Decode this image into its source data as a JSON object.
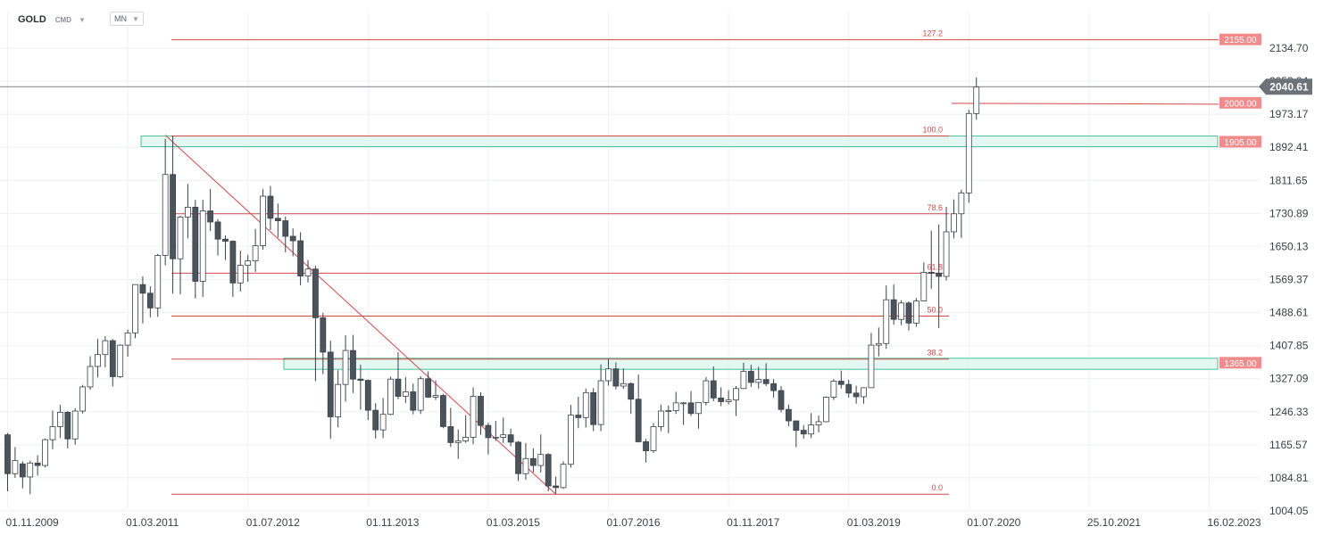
{
  "header": {
    "symbol": "GOLD",
    "exchange": "CMD",
    "interval": "MN"
  },
  "colors": {
    "bull_body": "#ffffff",
    "bear_body": "#4b545c",
    "wick": "#3a4148",
    "fib_line": "#d04a4a",
    "zone_fill": "#dff6ef",
    "zone_stroke": "#49c19b",
    "price_tag": "#f08c8c",
    "current_tag": "#6b7379",
    "grid": "#eef0f2"
  },
  "chart_data": {
    "type": "candlestick",
    "symbol": "GOLD",
    "interval": "MN",
    "y_ticks": [
      2134.7,
      2053.94,
      1973.17,
      1892.41,
      1811.65,
      1730.89,
      1650.13,
      1569.37,
      1488.61,
      1407.85,
      1327.09,
      1246.33,
      1165.57,
      1084.81,
      1004.05
    ],
    "x_tick_labels": [
      "01.11.2009",
      "01.03.2011",
      "01.07.2012",
      "01.11.2013",
      "01.03.2015",
      "01.07.2016",
      "01.11.2017",
      "01.03.2019",
      "01.07.2020",
      "25.10.2021",
      "16.02.2023"
    ],
    "current_price": 2040.61,
    "price_levels": [
      {
        "label": "2155.00",
        "value": 2155.0
      },
      {
        "label": "2000.00",
        "value": 2000.0
      },
      {
        "label": "1905.00",
        "value": 1905.0
      },
      {
        "label": "1365.00",
        "value": 1365.0
      }
    ],
    "fib_levels": [
      {
        "label": "127.2",
        "value": 2155.0
      },
      {
        "label": "100.0",
        "value": 1920.0
      },
      {
        "label": "78.6",
        "value": 1730.0
      },
      {
        "label": "61.8",
        "value": 1585.0
      },
      {
        "label": "50.0",
        "value": 1480.0
      },
      {
        "label": "38.2",
        "value": 1375.0
      },
      {
        "label": "0.0",
        "value": 1045.0
      }
    ],
    "zones": [
      {
        "label": "1905.00",
        "low": 1894.0,
        "high": 1920.0
      },
      {
        "label": "1365.00",
        "low": 1350.0,
        "high": 1377.0
      }
    ],
    "trendline": {
      "from": {
        "date": "2011-08-01",
        "price": 1922.0
      },
      "to": {
        "date": "2015-12-01",
        "price": 1045.0
      }
    },
    "candles": [
      {
        "date": "2009-11-01",
        "o": 1190,
        "h": 1194,
        "l": 1052,
        "c": 1095
      },
      {
        "date": "2009-12-01",
        "o": 1095,
        "h": 1160,
        "l": 1085,
        "c": 1127
      },
      {
        "date": "2010-01-01",
        "o": 1119,
        "h": 1125,
        "l": 1059,
        "c": 1087
      },
      {
        "date": "2010-02-01",
        "o": 1087,
        "h": 1127,
        "l": 1045,
        "c": 1121
      },
      {
        "date": "2010-03-01",
        "o": 1121,
        "h": 1140,
        "l": 1090,
        "c": 1115
      },
      {
        "date": "2010-04-01",
        "o": 1115,
        "h": 1181,
        "l": 1110,
        "c": 1178
      },
      {
        "date": "2010-05-01",
        "o": 1178,
        "h": 1249,
        "l": 1155,
        "c": 1210
      },
      {
        "date": "2010-06-01",
        "o": 1210,
        "h": 1263,
        "l": 1182,
        "c": 1245
      },
      {
        "date": "2010-07-01",
        "o": 1245,
        "h": 1248,
        "l": 1157,
        "c": 1180
      },
      {
        "date": "2010-08-01",
        "o": 1180,
        "h": 1255,
        "l": 1166,
        "c": 1248
      },
      {
        "date": "2010-09-01",
        "o": 1248,
        "h": 1312,
        "l": 1242,
        "c": 1307
      },
      {
        "date": "2010-10-01",
        "o": 1307,
        "h": 1382,
        "l": 1300,
        "c": 1357
      },
      {
        "date": "2010-11-01",
        "o": 1357,
        "h": 1424,
        "l": 1330,
        "c": 1386
      },
      {
        "date": "2010-12-01",
        "o": 1386,
        "h": 1431,
        "l": 1355,
        "c": 1420
      },
      {
        "date": "2011-01-01",
        "o": 1420,
        "h": 1424,
        "l": 1308,
        "c": 1332
      },
      {
        "date": "2011-02-01",
        "o": 1332,
        "h": 1411,
        "l": 1329,
        "c": 1409
      },
      {
        "date": "2011-03-01",
        "o": 1409,
        "h": 1447,
        "l": 1381,
        "c": 1439
      },
      {
        "date": "2011-04-01",
        "o": 1439,
        "h": 1557,
        "l": 1426,
        "c": 1557
      },
      {
        "date": "2011-05-01",
        "o": 1557,
        "h": 1577,
        "l": 1462,
        "c": 1536
      },
      {
        "date": "2011-06-01",
        "o": 1536,
        "h": 1553,
        "l": 1477,
        "c": 1500
      },
      {
        "date": "2011-07-01",
        "o": 1500,
        "h": 1632,
        "l": 1478,
        "c": 1628
      },
      {
        "date": "2011-08-01",
        "o": 1628,
        "h": 1913,
        "l": 1604,
        "c": 1826
      },
      {
        "date": "2011-09-01",
        "o": 1826,
        "h": 1921,
        "l": 1535,
        "c": 1620
      },
      {
        "date": "2011-10-01",
        "o": 1620,
        "h": 1725,
        "l": 1533,
        "c": 1722
      },
      {
        "date": "2011-11-01",
        "o": 1722,
        "h": 1803,
        "l": 1670,
        "c": 1746
      },
      {
        "date": "2011-12-01",
        "o": 1746,
        "h": 1764,
        "l": 1523,
        "c": 1565
      },
      {
        "date": "2012-01-01",
        "o": 1565,
        "h": 1764,
        "l": 1527,
        "c": 1737
      },
      {
        "date": "2012-02-01",
        "o": 1737,
        "h": 1791,
        "l": 1688,
        "c": 1710
      },
      {
        "date": "2012-03-01",
        "o": 1710,
        "h": 1717,
        "l": 1628,
        "c": 1668
      },
      {
        "date": "2012-04-01",
        "o": 1668,
        "h": 1677,
        "l": 1617,
        "c": 1663
      },
      {
        "date": "2012-05-01",
        "o": 1663,
        "h": 1665,
        "l": 1527,
        "c": 1561
      },
      {
        "date": "2012-06-01",
        "o": 1561,
        "h": 1640,
        "l": 1540,
        "c": 1604
      },
      {
        "date": "2012-07-01",
        "o": 1604,
        "h": 1630,
        "l": 1564,
        "c": 1615
      },
      {
        "date": "2012-08-01",
        "o": 1615,
        "h": 1693,
        "l": 1588,
        "c": 1652
      },
      {
        "date": "2012-09-01",
        "o": 1652,
        "h": 1790,
        "l": 1642,
        "c": 1773
      },
      {
        "date": "2012-10-01",
        "o": 1773,
        "h": 1798,
        "l": 1690,
        "c": 1719
      },
      {
        "date": "2012-11-01",
        "o": 1719,
        "h": 1755,
        "l": 1672,
        "c": 1713
      },
      {
        "date": "2012-12-01",
        "o": 1713,
        "h": 1723,
        "l": 1636,
        "c": 1675
      },
      {
        "date": "2013-01-01",
        "o": 1675,
        "h": 1694,
        "l": 1626,
        "c": 1664
      },
      {
        "date": "2013-02-01",
        "o": 1664,
        "h": 1685,
        "l": 1555,
        "c": 1578
      },
      {
        "date": "2013-03-01",
        "o": 1578,
        "h": 1617,
        "l": 1562,
        "c": 1595
      },
      {
        "date": "2013-04-01",
        "o": 1595,
        "h": 1603,
        "l": 1321,
        "c": 1476
      },
      {
        "date": "2013-05-01",
        "o": 1476,
        "h": 1488,
        "l": 1338,
        "c": 1392
      },
      {
        "date": "2013-06-01",
        "o": 1392,
        "h": 1420,
        "l": 1180,
        "c": 1234
      },
      {
        "date": "2013-07-01",
        "o": 1234,
        "h": 1348,
        "l": 1208,
        "c": 1313
      },
      {
        "date": "2013-08-01",
        "o": 1313,
        "h": 1433,
        "l": 1271,
        "c": 1396
      },
      {
        "date": "2013-09-01",
        "o": 1396,
        "h": 1434,
        "l": 1292,
        "c": 1326
      },
      {
        "date": "2013-10-01",
        "o": 1326,
        "h": 1361,
        "l": 1251,
        "c": 1323
      },
      {
        "date": "2013-11-01",
        "o": 1323,
        "h": 1325,
        "l": 1226,
        "c": 1250
      },
      {
        "date": "2013-12-01",
        "o": 1250,
        "h": 1267,
        "l": 1181,
        "c": 1202
      },
      {
        "date": "2014-01-01",
        "o": 1202,
        "h": 1280,
        "l": 1182,
        "c": 1240
      },
      {
        "date": "2014-02-01",
        "o": 1240,
        "h": 1332,
        "l": 1238,
        "c": 1326
      },
      {
        "date": "2014-03-01",
        "o": 1326,
        "h": 1392,
        "l": 1277,
        "c": 1284
      },
      {
        "date": "2014-04-01",
        "o": 1284,
        "h": 1331,
        "l": 1268,
        "c": 1295
      },
      {
        "date": "2014-05-01",
        "o": 1295,
        "h": 1315,
        "l": 1240,
        "c": 1250
      },
      {
        "date": "2014-06-01",
        "o": 1250,
        "h": 1333,
        "l": 1241,
        "c": 1327
      },
      {
        "date": "2014-07-01",
        "o": 1327,
        "h": 1345,
        "l": 1280,
        "c": 1282
      },
      {
        "date": "2014-08-01",
        "o": 1282,
        "h": 1323,
        "l": 1275,
        "c": 1286
      },
      {
        "date": "2014-09-01",
        "o": 1286,
        "h": 1290,
        "l": 1206,
        "c": 1210
      },
      {
        "date": "2014-10-01",
        "o": 1210,
        "h": 1256,
        "l": 1160,
        "c": 1171
      },
      {
        "date": "2014-11-01",
        "o": 1171,
        "h": 1203,
        "l": 1131,
        "c": 1175
      },
      {
        "date": "2014-12-01",
        "o": 1175,
        "h": 1238,
        "l": 1170,
        "c": 1184
      },
      {
        "date": "2015-01-01",
        "o": 1184,
        "h": 1306,
        "l": 1167,
        "c": 1284
      },
      {
        "date": "2015-02-01",
        "o": 1284,
        "h": 1294,
        "l": 1190,
        "c": 1213
      },
      {
        "date": "2015-03-01",
        "o": 1213,
        "h": 1220,
        "l": 1142,
        "c": 1183
      },
      {
        "date": "2015-04-01",
        "o": 1183,
        "h": 1224,
        "l": 1175,
        "c": 1184
      },
      {
        "date": "2015-05-01",
        "o": 1184,
        "h": 1232,
        "l": 1170,
        "c": 1190
      },
      {
        "date": "2015-06-01",
        "o": 1190,
        "h": 1205,
        "l": 1162,
        "c": 1172
      },
      {
        "date": "2015-07-01",
        "o": 1172,
        "h": 1175,
        "l": 1077,
        "c": 1095
      },
      {
        "date": "2015-08-01",
        "o": 1095,
        "h": 1170,
        "l": 1080,
        "c": 1132
      },
      {
        "date": "2015-09-01",
        "o": 1132,
        "h": 1157,
        "l": 1098,
        "c": 1115
      },
      {
        "date": "2015-10-01",
        "o": 1115,
        "h": 1191,
        "l": 1098,
        "c": 1142
      },
      {
        "date": "2015-11-01",
        "o": 1142,
        "h": 1145,
        "l": 1052,
        "c": 1065
      },
      {
        "date": "2015-12-01",
        "o": 1065,
        "h": 1088,
        "l": 1046,
        "c": 1061
      },
      {
        "date": "2016-01-01",
        "o": 1061,
        "h": 1125,
        "l": 1058,
        "c": 1118
      },
      {
        "date": "2016-02-01",
        "o": 1118,
        "h": 1263,
        "l": 1110,
        "c": 1238
      },
      {
        "date": "2016-03-01",
        "o": 1238,
        "h": 1283,
        "l": 1206,
        "c": 1232
      },
      {
        "date": "2016-04-01",
        "o": 1232,
        "h": 1303,
        "l": 1208,
        "c": 1293
      },
      {
        "date": "2016-05-01",
        "o": 1293,
        "h": 1304,
        "l": 1199,
        "c": 1215
      },
      {
        "date": "2016-06-01",
        "o": 1215,
        "h": 1362,
        "l": 1199,
        "c": 1322
      },
      {
        "date": "2016-07-01",
        "o": 1322,
        "h": 1375,
        "l": 1310,
        "c": 1351
      },
      {
        "date": "2016-08-01",
        "o": 1351,
        "h": 1367,
        "l": 1301,
        "c": 1309
      },
      {
        "date": "2016-09-01",
        "o": 1309,
        "h": 1352,
        "l": 1302,
        "c": 1315
      },
      {
        "date": "2016-10-01",
        "o": 1315,
        "h": 1318,
        "l": 1241,
        "c": 1277
      },
      {
        "date": "2016-11-01",
        "o": 1277,
        "h": 1337,
        "l": 1171,
        "c": 1173
      },
      {
        "date": "2016-12-01",
        "o": 1173,
        "h": 1180,
        "l": 1122,
        "c": 1151
      },
      {
        "date": "2017-01-01",
        "o": 1151,
        "h": 1219,
        "l": 1146,
        "c": 1210
      },
      {
        "date": "2017-02-01",
        "o": 1210,
        "h": 1264,
        "l": 1199,
        "c": 1248
      },
      {
        "date": "2017-03-01",
        "o": 1248,
        "h": 1261,
        "l": 1194,
        "c": 1249
      },
      {
        "date": "2017-04-01",
        "o": 1249,
        "h": 1295,
        "l": 1241,
        "c": 1268
      },
      {
        "date": "2017-05-01",
        "o": 1268,
        "h": 1270,
        "l": 1214,
        "c": 1268
      },
      {
        "date": "2017-06-01",
        "o": 1268,
        "h": 1297,
        "l": 1236,
        "c": 1242
      },
      {
        "date": "2017-07-01",
        "o": 1242,
        "h": 1270,
        "l": 1205,
        "c": 1269
      },
      {
        "date": "2017-08-01",
        "o": 1269,
        "h": 1331,
        "l": 1262,
        "c": 1322
      },
      {
        "date": "2017-09-01",
        "o": 1322,
        "h": 1357,
        "l": 1272,
        "c": 1280
      },
      {
        "date": "2017-10-01",
        "o": 1280,
        "h": 1306,
        "l": 1260,
        "c": 1271
      },
      {
        "date": "2017-11-01",
        "o": 1271,
        "h": 1299,
        "l": 1264,
        "c": 1275
      },
      {
        "date": "2017-12-01",
        "o": 1275,
        "h": 1309,
        "l": 1236,
        "c": 1303
      },
      {
        "date": "2018-01-01",
        "o": 1303,
        "h": 1366,
        "l": 1302,
        "c": 1345
      },
      {
        "date": "2018-02-01",
        "o": 1345,
        "h": 1361,
        "l": 1307,
        "c": 1318
      },
      {
        "date": "2018-03-01",
        "o": 1318,
        "h": 1356,
        "l": 1303,
        "c": 1325
      },
      {
        "date": "2018-04-01",
        "o": 1325,
        "h": 1365,
        "l": 1309,
        "c": 1315
      },
      {
        "date": "2018-05-01",
        "o": 1315,
        "h": 1326,
        "l": 1281,
        "c": 1298
      },
      {
        "date": "2018-06-01",
        "o": 1298,
        "h": 1309,
        "l": 1245,
        "c": 1252
      },
      {
        "date": "2018-07-01",
        "o": 1252,
        "h": 1264,
        "l": 1211,
        "c": 1224
      },
      {
        "date": "2018-08-01",
        "o": 1224,
        "h": 1224,
        "l": 1160,
        "c": 1201
      },
      {
        "date": "2018-09-01",
        "o": 1201,
        "h": 1214,
        "l": 1180,
        "c": 1192
      },
      {
        "date": "2018-10-01",
        "o": 1192,
        "h": 1243,
        "l": 1182,
        "c": 1214
      },
      {
        "date": "2018-11-01",
        "o": 1214,
        "h": 1237,
        "l": 1196,
        "c": 1222
      },
      {
        "date": "2018-12-01",
        "o": 1222,
        "h": 1284,
        "l": 1221,
        "c": 1282
      },
      {
        "date": "2019-01-01",
        "o": 1282,
        "h": 1326,
        "l": 1275,
        "c": 1321
      },
      {
        "date": "2019-02-01",
        "o": 1321,
        "h": 1347,
        "l": 1303,
        "c": 1313
      },
      {
        "date": "2019-03-01",
        "o": 1313,
        "h": 1324,
        "l": 1281,
        "c": 1292
      },
      {
        "date": "2019-04-01",
        "o": 1292,
        "h": 1310,
        "l": 1266,
        "c": 1283
      },
      {
        "date": "2019-05-01",
        "o": 1283,
        "h": 1306,
        "l": 1266,
        "c": 1305
      },
      {
        "date": "2019-06-01",
        "o": 1305,
        "h": 1439,
        "l": 1311,
        "c": 1409
      },
      {
        "date": "2019-07-01",
        "o": 1409,
        "h": 1452,
        "l": 1382,
        "c": 1413
      },
      {
        "date": "2019-08-01",
        "o": 1413,
        "h": 1555,
        "l": 1400,
        "c": 1520
      },
      {
        "date": "2019-09-01",
        "o": 1520,
        "h": 1557,
        "l": 1459,
        "c": 1472
      },
      {
        "date": "2019-10-01",
        "o": 1472,
        "h": 1519,
        "l": 1458,
        "c": 1512
      },
      {
        "date": "2019-11-01",
        "o": 1512,
        "h": 1516,
        "l": 1445,
        "c": 1463
      },
      {
        "date": "2019-12-01",
        "o": 1463,
        "h": 1524,
        "l": 1454,
        "c": 1517
      },
      {
        "date": "2020-01-01",
        "o": 1517,
        "h": 1611,
        "l": 1517,
        "c": 1587
      },
      {
        "date": "2020-02-01",
        "o": 1587,
        "h": 1689,
        "l": 1547,
        "c": 1585
      },
      {
        "date": "2020-03-01",
        "o": 1585,
        "h": 1704,
        "l": 1451,
        "c": 1577
      },
      {
        "date": "2020-04-01",
        "o": 1577,
        "h": 1747,
        "l": 1567,
        "c": 1686
      },
      {
        "date": "2020-05-01",
        "o": 1686,
        "h": 1765,
        "l": 1670,
        "c": 1730
      },
      {
        "date": "2020-06-01",
        "o": 1730,
        "h": 1789,
        "l": 1671,
        "c": 1781
      },
      {
        "date": "2020-07-01",
        "o": 1781,
        "h": 1984,
        "l": 1757,
        "c": 1975
      },
      {
        "date": "2020-08-01",
        "o": 1975,
        "h": 2063,
        "l": 1960,
        "c": 2040
      }
    ]
  }
}
